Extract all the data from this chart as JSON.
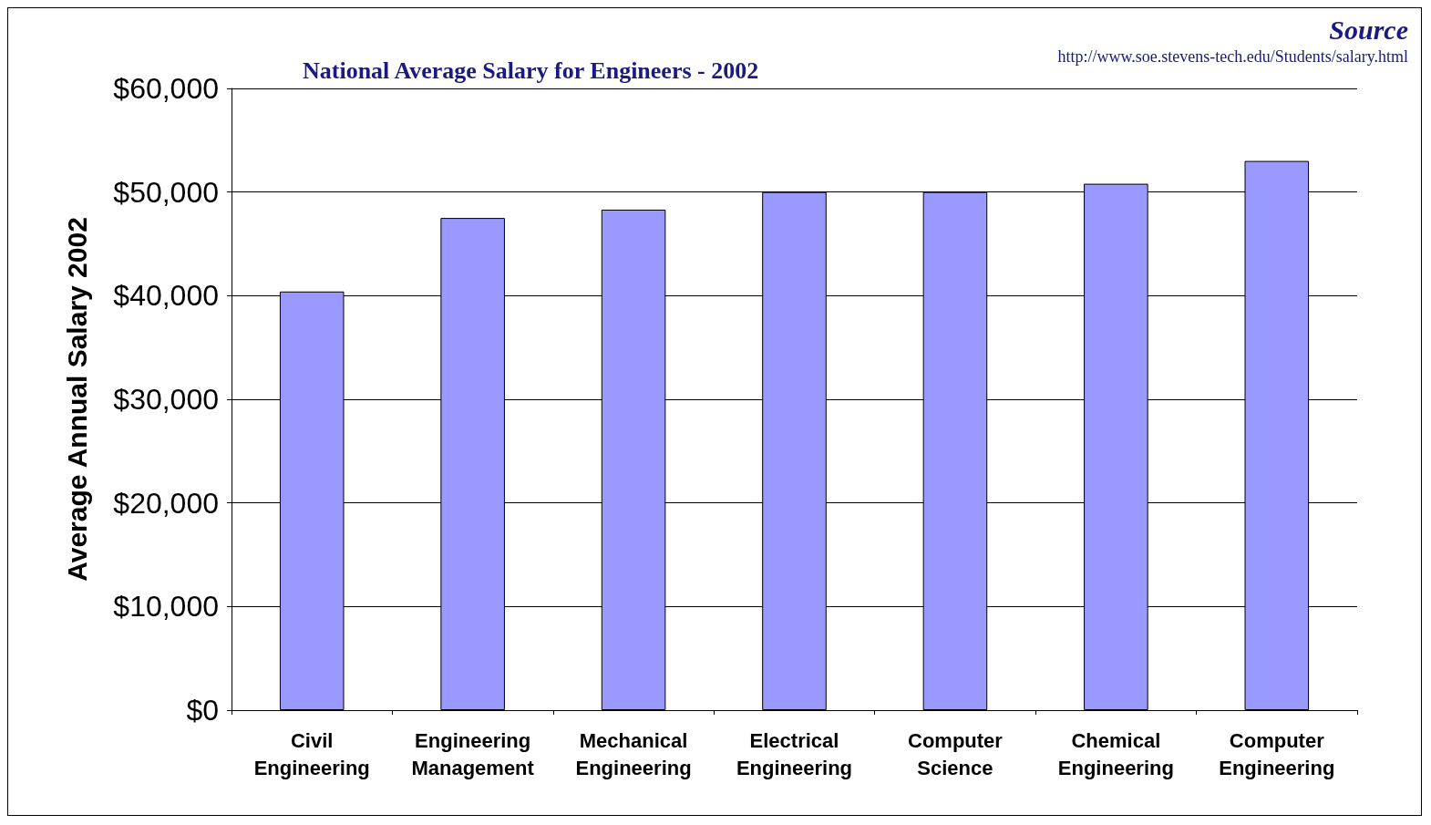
{
  "chart_data": {
    "type": "bar",
    "title": "National Average Salary for Engineers - 2002",
    "ylabel": "Average Annual Salary 2002",
    "categories": [
      "Civil\nEngineering",
      "Engineering\nManagement",
      "Mechanical\nEngineering",
      "Electrical\nEngineering",
      "Computer\nScience",
      "Chemical\nEngineering",
      "Computer\nEngineering"
    ],
    "values": [
      40400,
      47500,
      48300,
      50000,
      50000,
      50800,
      53000
    ],
    "color": "#9999ff",
    "ylim": [
      0,
      60000
    ],
    "yticks": [
      {
        "value": 0,
        "label": "$0"
      },
      {
        "value": 10000,
        "label": "$10,000"
      },
      {
        "value": 20000,
        "label": "$20,000"
      },
      {
        "value": 30000,
        "label": "$30,000"
      },
      {
        "value": 40000,
        "label": "$40,000"
      },
      {
        "value": 50000,
        "label": "$50,000"
      },
      {
        "value": 60000,
        "label": "$60,000"
      }
    ],
    "grid": "y",
    "annotations": [
      "Source",
      "http://www.soe.stevens-tech.edu/Students/salary.html"
    ]
  }
}
